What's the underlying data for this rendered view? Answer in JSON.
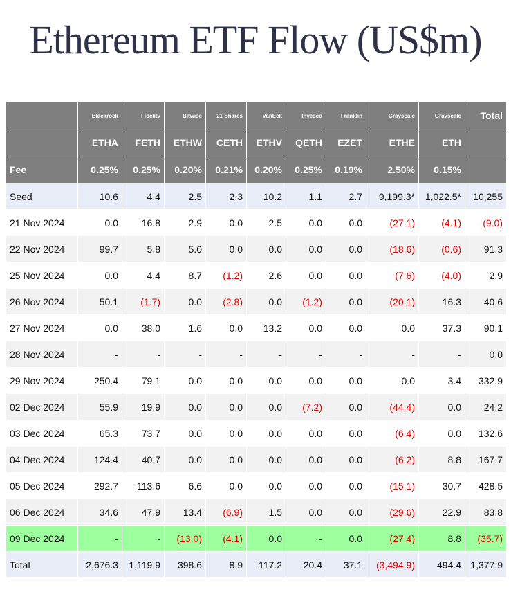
{
  "title": "Ethereum ETF Flow (US$m)",
  "columns": [
    {
      "issuer": "Blackrock",
      "ticker": "ETHA",
      "fee": "0.25%"
    },
    {
      "issuer": "Fidelity",
      "ticker": "FETH",
      "fee": "0.25%"
    },
    {
      "issuer": "Bitwise",
      "ticker": "ETHW",
      "fee": "0.20%"
    },
    {
      "issuer": "21 Shares",
      "ticker": "CETH",
      "fee": "0.21%"
    },
    {
      "issuer": "VanEck",
      "ticker": "ETHV",
      "fee": "0.20%"
    },
    {
      "issuer": "Invesco",
      "ticker": "QETH",
      "fee": "0.25%"
    },
    {
      "issuer": "Franklin",
      "ticker": "EZET",
      "fee": "0.19%"
    },
    {
      "issuer": "Grayscale",
      "ticker": "ETHE",
      "fee": "2.50%"
    },
    {
      "issuer": "Grayscale",
      "ticker": "ETH",
      "fee": "0.15%"
    }
  ],
  "total_header": "Total",
  "fee_label": "Fee",
  "rows": [
    {
      "label": "Seed",
      "cells": [
        "10.6",
        "4.4",
        "2.5",
        "2.3",
        "10.2",
        "1.1",
        "2.7",
        "9,199.3*",
        "1,022.5*",
        "10,255"
      ]
    },
    {
      "label": "21 Nov 2024",
      "cells": [
        "0.0",
        "16.8",
        "2.9",
        "0.0",
        "2.5",
        "0.0",
        "0.0",
        "(27.1)",
        "(4.1)",
        "(9.0)"
      ]
    },
    {
      "label": "22 Nov 2024",
      "cells": [
        "99.7",
        "5.8",
        "5.0",
        "0.0",
        "0.0",
        "0.0",
        "0.0",
        "(18.6)",
        "(0.6)",
        "91.3"
      ]
    },
    {
      "label": "25 Nov 2024",
      "cells": [
        "0.0",
        "4.4",
        "8.7",
        "(1.2)",
        "2.6",
        "0.0",
        "0.0",
        "(7.6)",
        "(4.0)",
        "2.9"
      ]
    },
    {
      "label": "26 Nov 2024",
      "cells": [
        "50.1",
        "(1.7)",
        "0.0",
        "(2.8)",
        "0.0",
        "(1.2)",
        "0.0",
        "(20.1)",
        "16.3",
        "40.6"
      ]
    },
    {
      "label": "27 Nov 2024",
      "cells": [
        "0.0",
        "38.0",
        "1.6",
        "0.0",
        "13.2",
        "0.0",
        "0.0",
        "0.0",
        "37.3",
        "90.1"
      ]
    },
    {
      "label": "28 Nov 2024",
      "cells": [
        "-",
        "-",
        "-",
        "-",
        "-",
        "-",
        "-",
        "-",
        "-",
        "0.0"
      ]
    },
    {
      "label": "29 Nov 2024",
      "cells": [
        "250.4",
        "79.1",
        "0.0",
        "0.0",
        "0.0",
        "0.0",
        "0.0",
        "0.0",
        "3.4",
        "332.9"
      ]
    },
    {
      "label": "02 Dec 2024",
      "cells": [
        "55.9",
        "19.9",
        "0.0",
        "0.0",
        "0.0",
        "(7.2)",
        "0.0",
        "(44.4)",
        "0.0",
        "24.2"
      ]
    },
    {
      "label": "03 Dec 2024",
      "cells": [
        "65.3",
        "73.7",
        "0.0",
        "0.0",
        "0.0",
        "0.0",
        "0.0",
        "(6.4)",
        "0.0",
        "132.6"
      ]
    },
    {
      "label": "04 Dec 2024",
      "cells": [
        "124.4",
        "40.7",
        "0.0",
        "0.0",
        "0.0",
        "0.0",
        "0.0",
        "(6.2)",
        "8.8",
        "167.7"
      ]
    },
    {
      "label": "05 Dec 2024",
      "cells": [
        "292.7",
        "113.6",
        "6.6",
        "0.0",
        "0.0",
        "0.0",
        "0.0",
        "(15.1)",
        "30.7",
        "428.5"
      ]
    },
    {
      "label": "06 Dec 2024",
      "cells": [
        "34.6",
        "47.9",
        "13.4",
        "(6.9)",
        "1.5",
        "0.0",
        "0.0",
        "(29.6)",
        "22.9",
        "83.8"
      ]
    },
    {
      "label": "09 Dec 2024",
      "cells": [
        "-",
        "-",
        "(13.0)",
        "(4.1)",
        "0.0",
        "-",
        "0.0",
        "(27.4)",
        "8.8",
        "(35.7)"
      ]
    },
    {
      "label": "Total",
      "cells": [
        "2,676.3",
        "1,119.9",
        "398.6",
        "8.9",
        "117.2",
        "20.4",
        "37.1",
        "(3,494.9)",
        "494.4",
        "1,377.9"
      ]
    }
  ],
  "colors": {
    "header_bg": "#7f7f7f",
    "negative": "#e00000",
    "highlight_row": "#9dff9d",
    "seed_total_bg": "#e8edf7"
  }
}
